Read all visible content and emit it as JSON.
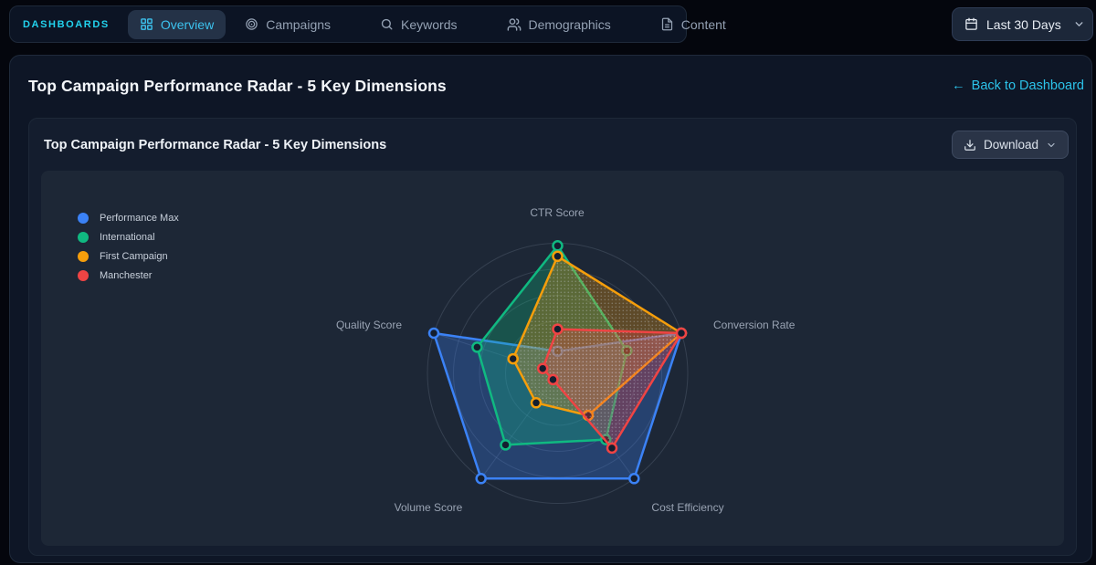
{
  "nav": {
    "brand": "DASHBOARDS",
    "tabs": [
      {
        "label": "Overview",
        "icon": "grid-icon",
        "active": true
      },
      {
        "label": "Campaigns",
        "icon": "disc-icon",
        "active": false
      },
      {
        "label": "Keywords",
        "icon": "search-icon",
        "active": false
      },
      {
        "label": "Demographics",
        "icon": "users-icon",
        "active": false
      },
      {
        "label": "Content",
        "icon": "file-icon",
        "active": false
      }
    ],
    "date_range": {
      "label": "Last 30 Days",
      "icon": "calendar-icon"
    }
  },
  "page": {
    "title": "Top Campaign Performance Radar - 5 Key Dimensions",
    "back_link": {
      "arrow": "←",
      "label": "Back to Dashboard"
    }
  },
  "card": {
    "title": "Top Campaign Performance Radar - 5 Key Dimensions",
    "download_button": {
      "label": "Download"
    }
  },
  "chart_data": {
    "type": "radar",
    "title": "Top Campaign Performance Radar - 5 Key Dimensions",
    "axes": [
      "CTR Score",
      "Conversion Rate",
      "Cost Efficiency",
      "Volume Score",
      "Quality Score"
    ],
    "scale": {
      "min": 0,
      "max": 100,
      "rings": 5
    },
    "grid": "circular",
    "legend_position": "top-left",
    "series": [
      {
        "name": "Performance Max",
        "color": "#3b82f6",
        "fill_pattern": "solid",
        "values": [
          17,
          100,
          100,
          100,
          100
        ]
      },
      {
        "name": "International",
        "color": "#10b981",
        "fill_pattern": "solid",
        "values": [
          98,
          56,
          63,
          68,
          65
        ]
      },
      {
        "name": "First Campaign",
        "color": "#f59e0b",
        "fill_pattern": "dots",
        "values": [
          90,
          100,
          40,
          28,
          36
        ]
      },
      {
        "name": "Manchester",
        "color": "#ef4444",
        "fill_pattern": "dots",
        "values": [
          34,
          100,
          71,
          6,
          12
        ]
      }
    ]
  },
  "colors": {
    "accent_cyan": "#22d3ee",
    "page_bg": "#04060d",
    "panel_bg": "#0e1626",
    "card_bg": "#141d2e",
    "chart_bg": "#1d2736",
    "grid_line": "#94a3b8",
    "marker_fill": "#141e2f"
  }
}
